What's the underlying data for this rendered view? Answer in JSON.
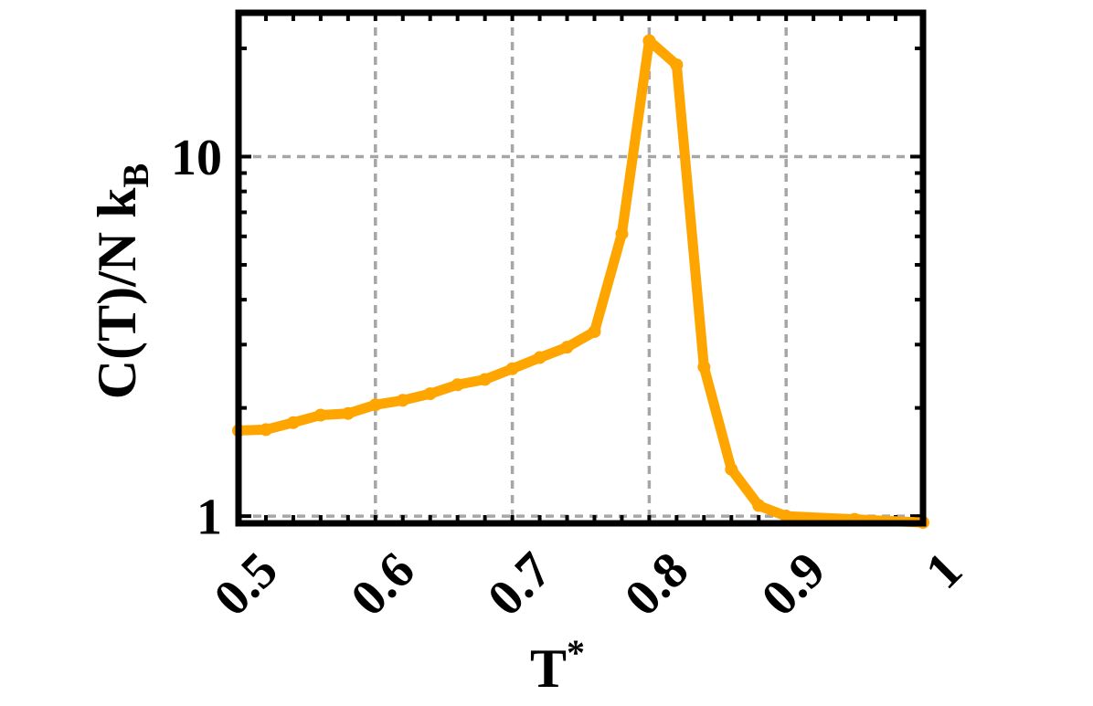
{
  "chart_data": {
    "type": "line",
    "xlabel_main": "T",
    "xlabel_sup": "*",
    "ylabel_main": "C(T)/N k",
    "ylabel_sub": "B",
    "xlim": [
      0.5,
      1.0
    ],
    "ylim_log10": [
      -0.02,
      1.4
    ],
    "yscale": "log",
    "grid": true,
    "x_ticks": [
      0.5,
      0.6,
      0.7,
      0.8,
      0.9,
      1.0
    ],
    "x_tick_labels": [
      "0.5",
      "0.6",
      "0.7",
      "0.8",
      "0.9",
      "1"
    ],
    "y_ticks": [
      1,
      10
    ],
    "y_tick_labels": [
      "1",
      "10"
    ],
    "line_color": "#FFA500",
    "grid_color": "#a6a6a6",
    "series": [
      {
        "x": [
          0.5,
          0.52,
          0.54,
          0.56,
          0.58,
          0.6,
          0.62,
          0.64,
          0.66,
          0.68,
          0.7,
          0.72,
          0.74,
          0.76,
          0.78,
          0.8,
          0.82,
          0.84,
          0.86,
          0.88,
          0.9,
          0.95,
          1.0
        ],
        "y": [
          1.73,
          1.74,
          1.82,
          1.91,
          1.93,
          2.04,
          2.1,
          2.19,
          2.32,
          2.4,
          2.57,
          2.76,
          2.95,
          3.26,
          6.1,
          21.0,
          18.0,
          2.6,
          1.35,
          1.07,
          1.0,
          0.98,
          0.96
        ]
      }
    ]
  }
}
